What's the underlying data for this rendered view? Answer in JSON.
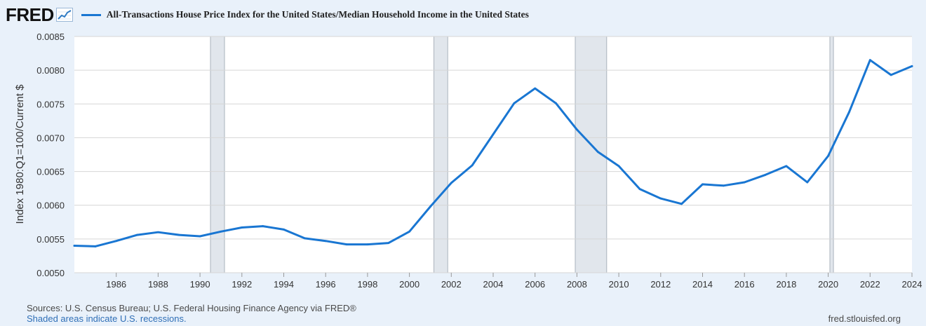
{
  "header": {
    "logo_text": "FRED",
    "logo_icon": "line-chart-icon"
  },
  "legend": {
    "label": "All-Transactions House Price Index for the United States/Median Household Income in the United States",
    "color": "#1976d2"
  },
  "footer": {
    "sources": "Sources: U.S. Census Bureau; U.S. Federal Housing Finance Agency via FRED®",
    "note": "Shaded areas indicate U.S. recessions.",
    "site": "fred.stlouisfed.org"
  },
  "chart_data": {
    "type": "line",
    "ylabel": "Index 1980:Q1=100/Current $",
    "xlim": [
      1984,
      2024
    ],
    "ylim": [
      0.005,
      0.0085
    ],
    "yticks": [
      "0.0050",
      "0.0055",
      "0.0060",
      "0.0065",
      "0.0070",
      "0.0075",
      "0.0080",
      "0.0085"
    ],
    "xticks": [
      "1986",
      "1988",
      "1990",
      "1992",
      "1994",
      "1996",
      "1998",
      "2000",
      "2002",
      "2004",
      "2006",
      "2008",
      "2010",
      "2012",
      "2014",
      "2016",
      "2018",
      "2020",
      "2022",
      "2024"
    ],
    "grid": true,
    "recessions": [
      {
        "start": 1990.5,
        "end": 1991.17
      },
      {
        "start": 2001.17,
        "end": 2001.83
      },
      {
        "start": 2007.92,
        "end": 2009.42
      },
      {
        "start": 2020.08,
        "end": 2020.25
      }
    ],
    "series": [
      {
        "color": "#1976d2",
        "x": [
          1984,
          1985,
          1986,
          1987,
          1988,
          1989,
          1990,
          1991,
          1992,
          1993,
          1994,
          1995,
          1996,
          1997,
          1998,
          1999,
          2000,
          2001,
          2002,
          2003,
          2004,
          2005,
          2006,
          2007,
          2008,
          2009,
          2010,
          2011,
          2012,
          2013,
          2014,
          2015,
          2016,
          2017,
          2018,
          2019,
          2020,
          2021,
          2022,
          2023,
          2024
        ],
        "y": [
          0.0054,
          0.00539,
          0.00547,
          0.00556,
          0.0056,
          0.00556,
          0.00554,
          0.00561,
          0.00567,
          0.00569,
          0.00564,
          0.00551,
          0.00547,
          0.00542,
          0.00542,
          0.00544,
          0.00561,
          0.00598,
          0.00633,
          0.00659,
          0.00705,
          0.00751,
          0.00773,
          0.00751,
          0.00712,
          0.00679,
          0.00658,
          0.00624,
          0.0061,
          0.00602,
          0.00631,
          0.00629,
          0.00634,
          0.00645,
          0.00658,
          0.00634,
          0.00673,
          0.00738,
          0.00815,
          0.00793,
          0.00806
        ]
      }
    ]
  }
}
